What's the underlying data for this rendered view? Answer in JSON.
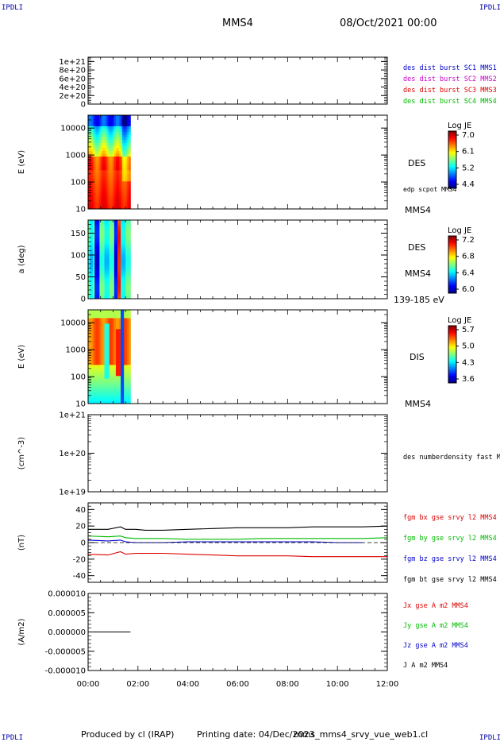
{
  "header": {
    "corner_label": "IPDLI",
    "title": "MMS4",
    "date": "08/Oct/2021 00:00"
  },
  "footer": {
    "produced_by": "Produced by cl (IRAP)",
    "printing_date": "Printing date: 04/Dec/2023",
    "filename": "mms_mms4_srvy_vue_web1.cl"
  },
  "chart_data": {
    "type": "multi-panel time series",
    "x_ticks": [
      "00:00",
      "02:00",
      "04:00",
      "06:00",
      "08:00",
      "10:00",
      "12:00"
    ],
    "x_range_hours": [
      0,
      12
    ],
    "data_coverage_hours": [
      0,
      1.7
    ],
    "panels": [
      {
        "id": "dist_burst",
        "type": "line",
        "ylabel": "",
        "ytick_labels": [
          "1e+21",
          "8e+20",
          "6e+20",
          "4e+20",
          "2e+20",
          "0"
        ],
        "ytick_values": [
          1e+21,
          8e+20,
          6e+20,
          4e+20,
          2e+20,
          0
        ],
        "ylim": [
          0,
          1.1e+21
        ],
        "zero_line": "dashed",
        "legend": [
          {
            "label": "des dist burst SC1 MMS1",
            "color": "#0000cc"
          },
          {
            "label": "des dist burst SC2 MMS2",
            "color": "#cc00cc"
          },
          {
            "label": "des dist burst SC3 MMS3",
            "color": "#dd0000"
          },
          {
            "label": "des dist burst SC4 MMS4",
            "color": "#00bb00"
          }
        ]
      },
      {
        "id": "des_energy",
        "type": "heatmap",
        "ylabel": "E (eV)",
        "scale": "log",
        "ytick_labels": [
          "10000",
          "1000",
          "100",
          "10"
        ],
        "ytick_values": [
          10000,
          1000,
          100,
          10
        ],
        "ylim": [
          10,
          30000
        ],
        "labels": [
          "DES",
          "edp scpot MMS4",
          "MMS4"
        ],
        "colorbar": {
          "title": "Log JE",
          "ticks": [
            "7.0",
            "6.1",
            "5.2",
            "4.4"
          ]
        }
      },
      {
        "id": "des_pitch",
        "type": "heatmap",
        "ylabel": "a (deg)",
        "ytick_labels": [
          "150",
          "100",
          "50",
          "0"
        ],
        "ytick_values": [
          150,
          100,
          50,
          0
        ],
        "ylim": [
          0,
          180
        ],
        "labels": [
          "DES",
          "MMS4",
          "139-185 eV"
        ],
        "colorbar": {
          "title": "Log JE",
          "ticks": [
            "7.2",
            "6.8",
            "6.4",
            "6.0"
          ]
        }
      },
      {
        "id": "dis_energy",
        "type": "heatmap",
        "ylabel": "E (eV)",
        "scale": "log",
        "ytick_labels": [
          "10000",
          "1000",
          "100",
          "10"
        ],
        "ytick_values": [
          10000,
          1000,
          100,
          10
        ],
        "ylim": [
          10,
          30000
        ],
        "labels": [
          "DIS",
          "MMS4"
        ],
        "colorbar": {
          "title": "Log JE",
          "ticks": [
            "5.7",
            "5.0",
            "4.3",
            "3.6"
          ]
        }
      },
      {
        "id": "density",
        "type": "line",
        "ylabel": "(cm^-3)",
        "scale": "log",
        "ytick_labels": [
          "1e+21",
          "1e+20",
          "1e+19"
        ],
        "ytick_values": [
          1e+21,
          1e+20,
          1e+19
        ],
        "ylim": [
          1e+19,
          1e+21
        ],
        "legend": [
          {
            "label": "des numberdensity fast M",
            "color": "#000000"
          }
        ]
      },
      {
        "id": "fgm",
        "type": "line",
        "ylabel": "(nT)",
        "ytick_labels": [
          "40",
          "20",
          "0",
          "-20",
          "-40"
        ],
        "ytick_values": [
          40,
          20,
          0,
          -20,
          -40
        ],
        "ylim": [
          -48,
          48
        ],
        "zero_line": "dashed",
        "legend": [
          {
            "label": "fgm bx gse srvy l2 MMS4",
            "color": "#dd0000"
          },
          {
            "label": "fgm by gse srvy l2 MMS4",
            "color": "#00bb00"
          },
          {
            "label": "fgm bz gse srvy l2 MMS4",
            "color": "#0000cc"
          },
          {
            "label": "fgm bt gse srvy l2 MMS4",
            "color": "#000000"
          }
        ],
        "series": [
          {
            "name": "fgm bt gse srvy l2 MMS4",
            "color": "#000000",
            "x": [
              0,
              0.8,
              1.3,
              1.5,
              1.9,
              2.3,
              3.0,
              4.0,
              5.0,
              6.0,
              7.0,
              8.0,
              9.0,
              10.0,
              11.0,
              12.0
            ],
            "y": [
              16,
              16,
              19,
              16,
              16,
              15,
              15,
              16,
              17,
              18,
              18,
              18,
              19,
              19,
              19,
              20
            ]
          },
          {
            "name": "fgm bx gse srvy l2 MMS4",
            "color": "#dd0000",
            "x": [
              0,
              0.8,
              1.3,
              1.5,
              1.9,
              2.3,
              3.0,
              4.0,
              5.0,
              6.0,
              7.0,
              8.0,
              9.0,
              10.0,
              11.0,
              12.0
            ],
            "y": [
              -14,
              -15,
              -11,
              -14,
              -13,
              -13,
              -13,
              -14,
              -15,
              -16,
              -16,
              -16,
              -17,
              -17,
              -17,
              -17
            ]
          },
          {
            "name": "fgm by gse srvy l2 MMS4",
            "color": "#00bb00",
            "x": [
              0,
              0.8,
              1.3,
              1.5,
              1.9,
              2.3,
              3.0,
              4.0,
              5.0,
              6.0,
              7.0,
              8.0,
              9.0,
              10.0,
              11.0,
              12.0
            ],
            "y": [
              8,
              7,
              8,
              6,
              5,
              5,
              5,
              4,
              4,
              4,
              5,
              5,
              5,
              5,
              5,
              6
            ]
          },
          {
            "name": "fgm bz gse srvy l2 MMS4",
            "color": "#0000cc",
            "x": [
              0,
              0.8,
              1.3,
              1.5,
              1.9,
              2.3,
              3.0,
              4.0,
              5.0,
              6.0,
              7.0,
              8.0,
              9.0,
              10.0,
              11.0
            ],
            "y": [
              3,
              2,
              3,
              1,
              0,
              0,
              0,
              1,
              1,
              1,
              1,
              1,
              1,
              0,
              0
            ]
          }
        ]
      },
      {
        "id": "current",
        "type": "line",
        "ylabel": "(A/m2)",
        "ytick_labels": [
          "0.000010",
          "0.000005",
          "0.000000",
          "-0.000005",
          "-0.000010"
        ],
        "ytick_values": [
          1e-05,
          5e-06,
          0,
          -5e-06,
          -1e-05
        ],
        "ylim": [
          -1e-05,
          1e-05
        ],
        "legend": [
          {
            "label": "Jx gse A m2 MMS4",
            "color": "#dd0000"
          },
          {
            "label": "Jy gse A m2 MMS4",
            "color": "#00bb00"
          },
          {
            "label": "Jz gse A m2 MMS4",
            "color": "#0000cc"
          },
          {
            "label": "J A m2 MMS4",
            "color": "#000000"
          }
        ],
        "series": [
          {
            "name": "J A m2 MMS4",
            "color": "#000000",
            "x": [
              0,
              1.7
            ],
            "y": [
              0,
              0
            ]
          }
        ]
      }
    ]
  }
}
